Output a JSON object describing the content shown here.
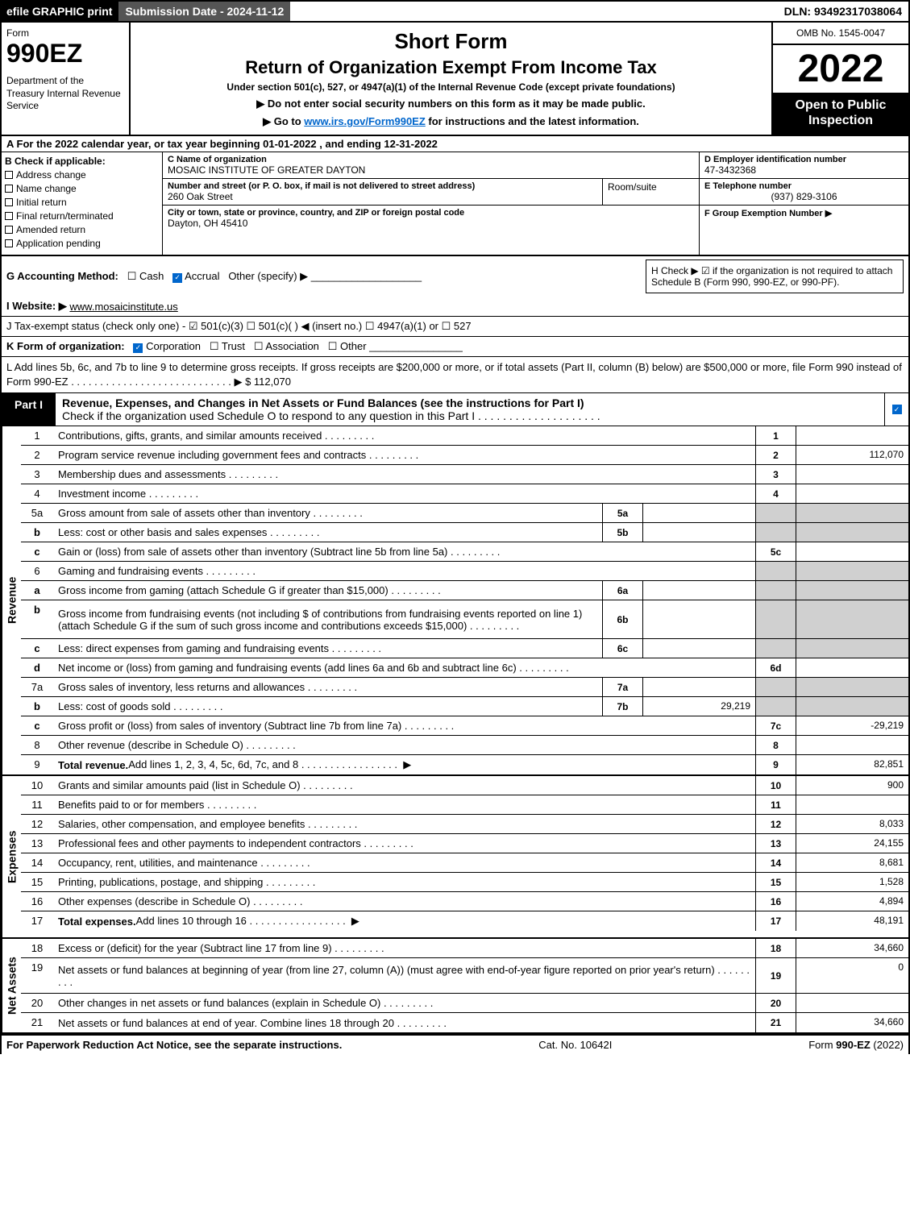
{
  "top_bar": {
    "efile": "efile GRAPHIC print",
    "sub_date_label": "Submission Date - 2024-11-12",
    "dln": "DLN: 93492317038064"
  },
  "header": {
    "form_label": "Form",
    "form_number": "990EZ",
    "dept": "Department of the Treasury Internal Revenue Service",
    "short_form": "Short Form",
    "return_title": "Return of Organization Exempt From Income Tax",
    "under_section": "Under section 501(c), 527, or 4947(a)(1) of the Internal Revenue Code (except private foundations)",
    "instruction1": "▶ Do not enter social security numbers on this form as it may be made public.",
    "instruction2_pre": "▶ Go to ",
    "instruction2_link": "www.irs.gov/Form990EZ",
    "instruction2_post": " for instructions and the latest information.",
    "omb": "OMB No. 1545-0047",
    "year": "2022",
    "open": "Open to Public Inspection"
  },
  "section_a": "A  For the 2022 calendar year, or tax year beginning 01-01-2022  , and ending 12-31-2022",
  "section_b": {
    "label": "B",
    "check_label": "Check if applicable:",
    "items": [
      "Address change",
      "Name change",
      "Initial return",
      "Final return/terminated",
      "Amended return",
      "Application pending"
    ]
  },
  "section_c": {
    "label_name": "C Name of organization",
    "org_name": "MOSAIC INSTITUTE OF GREATER DAYTON",
    "label_addr": "Number and street (or P. O. box, if mail is not delivered to street address)",
    "addr": "260 Oak Street",
    "room_label": "Room/suite",
    "label_city": "City or town, state or province, country, and ZIP or foreign postal code",
    "city": "Dayton, OH  45410"
  },
  "section_d": {
    "label": "D Employer identification number",
    "value": "47-3432368"
  },
  "section_e": {
    "label": "E Telephone number",
    "value": "(937) 829-3106"
  },
  "section_f": {
    "label": "F Group Exemption Number  ▶",
    "value": ""
  },
  "section_g": {
    "pre": "G Accounting Method:",
    "cash": "Cash",
    "accrual": "Accrual",
    "other": "Other (specify) ▶"
  },
  "section_h": {
    "text": "H  Check ▶  ☑  if the organization is not required to attach Schedule B (Form 990, 990-EZ, or 990-PF)."
  },
  "section_i": {
    "pre": "I Website: ▶",
    "value": "www.mosaicinstitute.us"
  },
  "section_j": {
    "text": "J Tax-exempt status (check only one) - ☑ 501(c)(3)  ☐ 501(c)(  ) ◀ (insert no.)  ☐ 4947(a)(1) or  ☐ 527"
  },
  "section_k": {
    "pre": "K Form of organization:",
    "corp": "Corporation",
    "trust": "Trust",
    "assoc": "Association",
    "other": "Other"
  },
  "section_l": {
    "text": "L Add lines 5b, 6c, and 7b to line 9 to determine gross receipts. If gross receipts are $200,000 or more, or if total assets (Part II, column (B) below) are $500,000 or more, file Form 990 instead of Form 990-EZ",
    "value": "▶ $ 112,070"
  },
  "part1": {
    "label": "Part I",
    "title": "Revenue, Expenses, and Changes in Net Assets or Fund Balances (see the instructions for Part I)",
    "subtitle": "Check if the organization used Schedule O to respond to any question in this Part I"
  },
  "revenue_label": "Revenue",
  "expenses_label": "Expenses",
  "netassets_label": "Net Assets",
  "rows": [
    {
      "num": "1",
      "desc": "Contributions, gifts, grants, and similar amounts received",
      "rnum": "1",
      "rval": ""
    },
    {
      "num": "2",
      "desc": "Program service revenue including government fees and contracts",
      "rnum": "2",
      "rval": "112,070"
    },
    {
      "num": "3",
      "desc": "Membership dues and assessments",
      "rnum": "3",
      "rval": ""
    },
    {
      "num": "4",
      "desc": "Investment income",
      "rnum": "4",
      "rval": ""
    },
    {
      "num": "5a",
      "desc": "Gross amount from sale of assets other than inventory",
      "ibox": "5a",
      "ival": "",
      "gray": true
    },
    {
      "num": "b",
      "desc": "Less: cost or other basis and sales expenses",
      "ibox": "5b",
      "ival": "",
      "gray": true
    },
    {
      "num": "c",
      "desc": "Gain or (loss) from sale of assets other than inventory (Subtract line 5b from line 5a)",
      "rnum": "5c",
      "rval": ""
    },
    {
      "num": "6",
      "desc": "Gaming and fundraising events",
      "gray": true
    },
    {
      "num": "a",
      "desc": "Gross income from gaming (attach Schedule G if greater than $15,000)",
      "ibox": "6a",
      "ival": "",
      "gray": true
    },
    {
      "num": "b",
      "desc": "Gross income from fundraising events (not including $                       of contributions from fundraising events reported on line 1) (attach Schedule G if the sum of such gross income and contributions exceeds $15,000)",
      "ibox": "6b",
      "ival": "",
      "gray": true,
      "tall": true
    },
    {
      "num": "c",
      "desc": "Less: direct expenses from gaming and fundraising events",
      "ibox": "6c",
      "ival": "",
      "gray": true
    },
    {
      "num": "d",
      "desc": "Net income or (loss) from gaming and fundraising events (add lines 6a and 6b and subtract line 6c)",
      "rnum": "6d",
      "rval": ""
    },
    {
      "num": "7a",
      "desc": "Gross sales of inventory, less returns and allowances",
      "ibox": "7a",
      "ival": "",
      "gray": true
    },
    {
      "num": "b",
      "desc": "Less: cost of goods sold",
      "ibox": "7b",
      "ival": "29,219",
      "gray": true
    },
    {
      "num": "c",
      "desc": "Gross profit or (loss) from sales of inventory (Subtract line 7b from line 7a)",
      "rnum": "7c",
      "rval": "-29,219"
    },
    {
      "num": "8",
      "desc": "Other revenue (describe in Schedule O)",
      "rnum": "8",
      "rval": ""
    },
    {
      "num": "9",
      "desc": "Total revenue. Add lines 1, 2, 3, 4, 5c, 6d, 7c, and 8",
      "rnum": "9",
      "rval": "82,851",
      "bold": true,
      "arrow": true
    }
  ],
  "exp_rows": [
    {
      "num": "10",
      "desc": "Grants and similar amounts paid (list in Schedule O)",
      "rnum": "10",
      "rval": "900"
    },
    {
      "num": "11",
      "desc": "Benefits paid to or for members",
      "rnum": "11",
      "rval": ""
    },
    {
      "num": "12",
      "desc": "Salaries, other compensation, and employee benefits",
      "rnum": "12",
      "rval": "8,033"
    },
    {
      "num": "13",
      "desc": "Professional fees and other payments to independent contractors",
      "rnum": "13",
      "rval": "24,155"
    },
    {
      "num": "14",
      "desc": "Occupancy, rent, utilities, and maintenance",
      "rnum": "14",
      "rval": "8,681"
    },
    {
      "num": "15",
      "desc": "Printing, publications, postage, and shipping",
      "rnum": "15",
      "rval": "1,528"
    },
    {
      "num": "16",
      "desc": "Other expenses (describe in Schedule O)",
      "rnum": "16",
      "rval": "4,894"
    },
    {
      "num": "17",
      "desc": "Total expenses. Add lines 10 through 16",
      "rnum": "17",
      "rval": "48,191",
      "bold": true,
      "arrow": true
    }
  ],
  "net_rows": [
    {
      "num": "18",
      "desc": "Excess or (deficit) for the year (Subtract line 17 from line 9)",
      "rnum": "18",
      "rval": "34,660"
    },
    {
      "num": "19",
      "desc": "Net assets or fund balances at beginning of year (from line 27, column (A)) (must agree with end-of-year figure reported on prior year's return)",
      "rnum": "19",
      "rval": "0",
      "tall": true,
      "gray": true
    },
    {
      "num": "20",
      "desc": "Other changes in net assets or fund balances (explain in Schedule O)",
      "rnum": "20",
      "rval": ""
    },
    {
      "num": "21",
      "desc": "Net assets or fund balances at end of year. Combine lines 18 through 20",
      "rnum": "21",
      "rval": "34,660"
    }
  ],
  "footer": {
    "left": "For Paperwork Reduction Act Notice, see the separate instructions.",
    "center": "Cat. No. 10642I",
    "right_pre": "Form ",
    "right_bold": "990-EZ",
    "right_post": " (2022)"
  }
}
